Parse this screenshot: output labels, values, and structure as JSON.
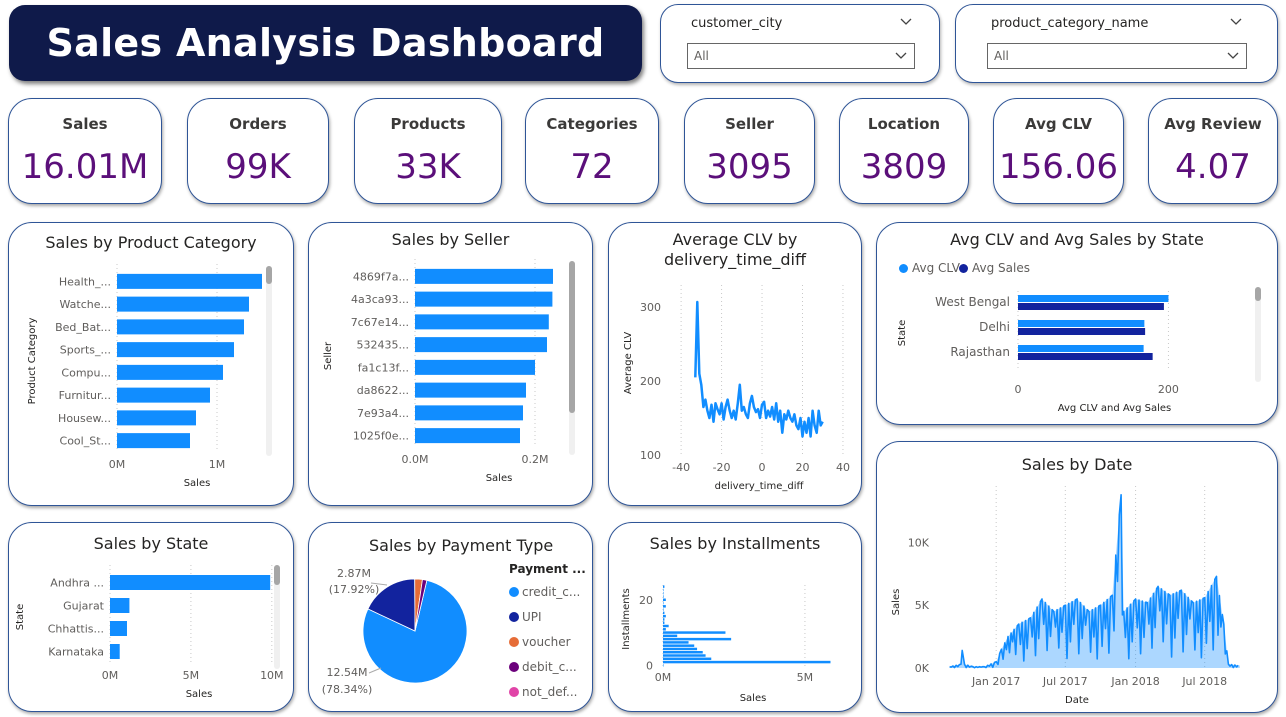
{
  "header": {
    "title": "Sales Analysis Dashboard"
  },
  "filters": [
    {
      "label": "customer_city",
      "value": "All"
    },
    {
      "label": "product_category_name",
      "value": "All"
    }
  ],
  "kpis": [
    {
      "label": "Sales",
      "value": "16.01M"
    },
    {
      "label": "Orders",
      "value": "99K"
    },
    {
      "label": "Products",
      "value": "33K"
    },
    {
      "label": "Categories",
      "value": "72"
    },
    {
      "label": "Seller",
      "value": "3095"
    },
    {
      "label": "Location",
      "value": "3809"
    },
    {
      "label": "Avg CLV",
      "value": "156.06"
    },
    {
      "label": "Avg Review",
      "value": "4.07"
    }
  ],
  "colors": {
    "accent": "#118dff",
    "dark_blue": "#12239e",
    "orange": "#e66c37",
    "purple": "#6b007b",
    "pink": "#e044a7",
    "kpi_value": "#5b0f7a",
    "title_bg": "#0f1a4a",
    "border": "#2f5597"
  },
  "chart_data": [
    {
      "id": "sales_by_product_category",
      "type": "bar",
      "orientation": "horizontal",
      "title": "Sales by Product Category",
      "xlabel": "Sales",
      "ylabel": "Product Category",
      "categories": [
        "Health_...",
        "Watche...",
        "Bed_Bat...",
        "Sports_...",
        "Compu...",
        "Furnitur...",
        "Housew...",
        "Cool_St..."
      ],
      "values": [
        1.45,
        1.32,
        1.27,
        1.17,
        1.06,
        0.93,
        0.79,
        0.73
      ],
      "unit": "M",
      "xlim": [
        0,
        1.6
      ],
      "xticks": [
        "0M",
        "1M"
      ]
    },
    {
      "id": "sales_by_seller",
      "type": "bar",
      "orientation": "horizontal",
      "title": "Sales by Seller",
      "xlabel": "Sales",
      "ylabel": "Seller",
      "categories": [
        "4869f7a...",
        "4a3ca93...",
        "7c67e14...",
        "532435...",
        "fa1c13f...",
        "da8622...",
        "7e93a4...",
        "1025f0e..."
      ],
      "values": [
        0.23,
        0.229,
        0.223,
        0.22,
        0.2,
        0.185,
        0.18,
        0.175
      ],
      "unit": "M",
      "xlim": [
        0,
        0.28
      ],
      "xticks": [
        "0.0M",
        "0.2M"
      ]
    },
    {
      "id": "avg_clv_by_delivery_time_diff",
      "type": "line",
      "title": "Average CLV by delivery_time_diff",
      "xlabel": "delivery_time_diff",
      "ylabel": "Average CLV",
      "xlim": [
        -45,
        42
      ],
      "ylim": [
        100,
        330
      ],
      "xticks": [
        -40,
        -20,
        0,
        20,
        40
      ],
      "yticks": [
        100,
        200,
        300
      ],
      "x": [
        -33,
        -32,
        -31,
        -30,
        -29,
        -28,
        -27,
        -26,
        -25,
        -24,
        -23,
        -22,
        -21,
        -20,
        -19,
        -18,
        -17,
        -16,
        -15,
        -14,
        -13,
        -12,
        -11,
        -10,
        -9,
        -8,
        -7,
        -6,
        -5,
        -4,
        -3,
        -2,
        -1,
        0,
        1,
        2,
        3,
        4,
        5,
        6,
        7,
        8,
        9,
        10,
        11,
        12,
        13,
        14,
        15,
        16,
        17,
        18,
        19,
        20,
        21,
        22,
        23,
        24,
        25,
        26,
        27,
        28,
        29,
        30
      ],
      "y": [
        205,
        307,
        210,
        195,
        165,
        175,
        160,
        150,
        168,
        145,
        170,
        162,
        155,
        170,
        148,
        165,
        175,
        160,
        150,
        160,
        148,
        170,
        195,
        160,
        165,
        155,
        150,
        170,
        180,
        165,
        158,
        162,
        150,
        168,
        172,
        150,
        160,
        152,
        165,
        148,
        170,
        145,
        160,
        130,
        155,
        148,
        160,
        150,
        145,
        155,
        140,
        135,
        150,
        125,
        145,
        130,
        150,
        125,
        160,
        140,
        130,
        160,
        140,
        145
      ]
    },
    {
      "id": "avg_clv_and_avg_sales_by_state",
      "type": "bar",
      "orientation": "horizontal",
      "title": "Avg CLV and Avg Sales by State",
      "xlabel": "Avg CLV and Avg Sales",
      "ylabel": "State",
      "categories": [
        "West Bengal",
        "Delhi",
        "Rajasthan"
      ],
      "series": [
        {
          "name": "Avg CLV",
          "values": [
            200,
            168,
            167
          ]
        },
        {
          "name": "Avg Sales",
          "values": [
            194,
            169,
            179
          ]
        }
      ],
      "xlim": [
        0,
        230
      ],
      "xticks": [
        0,
        200
      ],
      "legend": "top-left"
    },
    {
      "id": "sales_by_state",
      "type": "bar",
      "orientation": "horizontal",
      "title": "Sales by State",
      "xlabel": "Sales",
      "ylabel": "State",
      "categories": [
        "Andhra ...",
        "Gujarat",
        "Chhattis...",
        "Karnataka"
      ],
      "values": [
        9.9,
        1.2,
        1.05,
        0.6
      ],
      "unit": "M",
      "xlim": [
        0,
        11
      ],
      "xticks": [
        "0M",
        "5M",
        "10M"
      ]
    },
    {
      "id": "sales_by_payment_type",
      "type": "pie",
      "title": "Sales by Payment Type",
      "legend_title": "Payment ...",
      "labels": [
        "credit_c...",
        "UPI",
        "voucher",
        "debit_c...",
        "not_def..."
      ],
      "values": [
        12.54,
        2.87,
        0.38,
        0.22,
        0.0
      ],
      "percent": [
        78.34,
        17.92,
        2.4,
        1.34,
        0.0
      ],
      "data_labels": [
        {
          "value": "12.54M",
          "percent": "(78.34%)"
        },
        {
          "value": "2.87M",
          "percent": "(17.92%)"
        }
      ]
    },
    {
      "id": "sales_by_installments",
      "type": "bar",
      "orientation": "horizontal",
      "title": "Sales by Installments",
      "xlabel": "Sales",
      "ylabel": "Installments",
      "categories": [
        0,
        1,
        2,
        3,
        4,
        5,
        6,
        7,
        8,
        9,
        10,
        11,
        12,
        13,
        14,
        15,
        16,
        17,
        18,
        19,
        20,
        21,
        22,
        23,
        24
      ],
      "values": [
        0.01,
        5.9,
        1.7,
        1.5,
        1.4,
        1.2,
        1.1,
        0.9,
        2.4,
        0.5,
        2.2,
        0.1,
        0.2,
        0.05,
        0.05,
        0.1,
        0.05,
        0.02,
        0.1,
        0.01,
        0.1,
        0.02,
        0.01,
        0.01,
        0.05
      ],
      "unit": "M",
      "xlim": [
        0,
        6.2
      ],
      "xticks": [
        "0M",
        "5M"
      ],
      "yticks": [
        0,
        20
      ]
    },
    {
      "id": "sales_by_date",
      "type": "area",
      "title": "Sales by Date",
      "xlabel": "Date",
      "ylabel": "Sales",
      "xticks": [
        "Jan 2017",
        "Jul 2017",
        "Jan 2018",
        "Jul 2018"
      ],
      "yticks": [
        "0K",
        "5K",
        "10K"
      ],
      "ylim": [
        0,
        14500
      ],
      "x": [
        "2016-09-01",
        "2016-10-01",
        "2016-10-04",
        "2016-10-10",
        "2016-11-01",
        "2016-12-01",
        "2017-01-01",
        "2017-01-15",
        "2017-02-01",
        "2017-03-01",
        "2017-04-01",
        "2017-05-01",
        "2017-06-01",
        "2017-07-01",
        "2017-08-01",
        "2017-09-01",
        "2017-10-01",
        "2017-11-01",
        "2017-11-24",
        "2017-12-01",
        "2018-01-01",
        "2018-02-01",
        "2018-03-01",
        "2018-04-01",
        "2018-05-01",
        "2018-06-01",
        "2018-07-01",
        "2018-08-01",
        "2018-08-20",
        "2018-09-01",
        "2018-10-01"
      ],
      "y": [
        100,
        300,
        1400,
        300,
        100,
        100,
        500,
        1500,
        2500,
        3500,
        4000,
        5500,
        4500,
        5000,
        5500,
        4500,
        5000,
        5800,
        13800,
        4500,
        5500,
        5200,
        6500,
        5800,
        6200,
        5200,
        5600,
        7300,
        3500,
        300,
        200
      ]
    }
  ]
}
